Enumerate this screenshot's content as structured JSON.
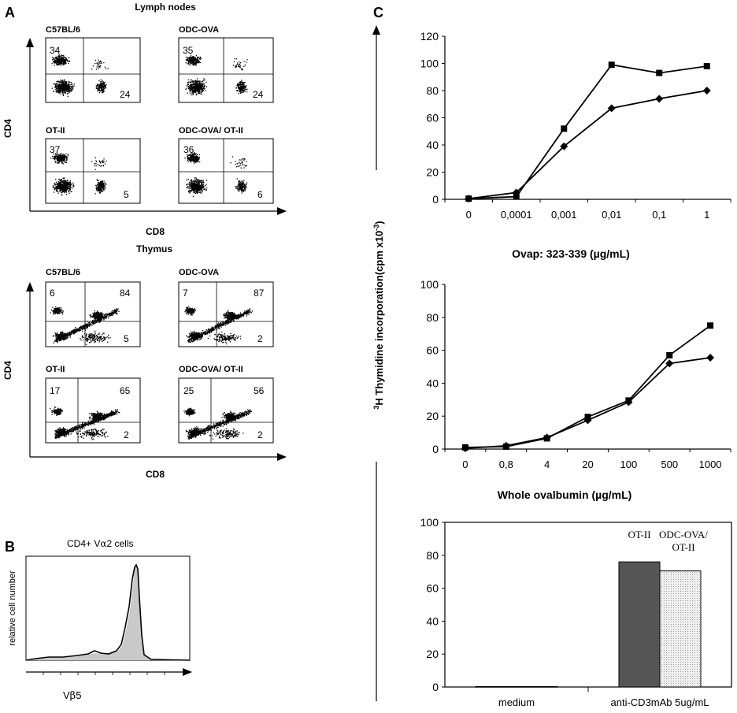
{
  "panels": {
    "A": {
      "letter": "A",
      "lymph": {
        "title": "Lymph nodes",
        "y_label": "CD4",
        "x_label": "CD8",
        "plots": [
          {
            "name": "C57BL/6",
            "ul": "34",
            "ur": "",
            "lr": "24"
          },
          {
            "name": "ODC-OVA",
            "ul": "35",
            "ur": "",
            "lr": "24"
          },
          {
            "name": "OT-II",
            "ul": "37",
            "ur": "",
            "lr": "5"
          },
          {
            "name": "ODC-OVA/ OT-II",
            "ul": "36",
            "ur": "",
            "lr": "6"
          }
        ]
      },
      "thymus": {
        "title": "Thymus",
        "y_label": "CD4",
        "x_label": "CD8",
        "plots": [
          {
            "name": "C57BL/6",
            "ul": "6",
            "ur": "84",
            "lr": "5"
          },
          {
            "name": "ODC-OVA",
            "ul": "7",
            "ur": "87",
            "lr": "2"
          },
          {
            "name": "OT-II",
            "ul": "17",
            "ur": "65",
            "lr": "2"
          },
          {
            "name": "ODC-OVA/ OT-II",
            "ul": "25",
            "ur": "56",
            "lr": "2"
          }
        ]
      }
    },
    "B": {
      "letter": "B",
      "title_main": "CD4+ V",
      "title_greek": "α",
      "title_rest": "2 cells",
      "y_label": "relative cell number",
      "x_label_main": "V",
      "x_label_greek": "β",
      "x_label_rest": "5"
    },
    "C": {
      "letter": "C",
      "shared_ylabel": {
        "superscript": "3",
        "main": "H Thymidine incorporation(cpm x10",
        "exp": "-3",
        "close": ")"
      }
    }
  },
  "chart_data": [
    {
      "type": "line",
      "title": "",
      "xlabel": "Ovap: 323-339 (µg/mL)",
      "ylabel": "",
      "categories": [
        "0",
        "0,0001",
        "0,001",
        "0,01",
        "0,1",
        "1"
      ],
      "ylim": [
        0,
        120
      ],
      "yticks": [
        0,
        20,
        40,
        60,
        80,
        100,
        120
      ],
      "series": [
        {
          "marker": "square",
          "values": [
            0.5,
            2,
            52,
            99,
            93,
            98
          ]
        },
        {
          "marker": "diamond",
          "values": [
            0.5,
            5,
            39,
            67,
            74,
            80
          ]
        }
      ]
    },
    {
      "type": "line",
      "title": "",
      "xlabel": "Whole ovalbumin (µg/mL)",
      "ylabel": "",
      "categories": [
        "0",
        "0,8",
        "4",
        "20",
        "100",
        "500",
        "1000"
      ],
      "ylim": [
        0,
        100
      ],
      "yticks": [
        0,
        20,
        40,
        60,
        80,
        100
      ],
      "series": [
        {
          "marker": "square",
          "values": [
            1,
            1.5,
            6.5,
            19.5,
            29.5,
            57,
            75
          ]
        },
        {
          "marker": "diamond",
          "values": [
            0.5,
            2,
            7,
            17.5,
            28.5,
            52,
            55.5
          ]
        }
      ]
    },
    {
      "type": "bar",
      "title": "",
      "xlabel": "",
      "ylabel": "",
      "categories": [
        "medium",
        "anti-CD3mAb 5ug/mL"
      ],
      "ylim": [
        0,
        100
      ],
      "yticks": [
        0,
        20,
        40,
        60,
        80,
        100
      ],
      "series": [
        {
          "name": "OT-II",
          "color": "#555555",
          "values": [
            0.3,
            76
          ]
        },
        {
          "name": "ODC-OVA/\nOT-II",
          "color": "#d8d8d8",
          "values": [
            0.3,
            70.5
          ]
        }
      ]
    }
  ]
}
